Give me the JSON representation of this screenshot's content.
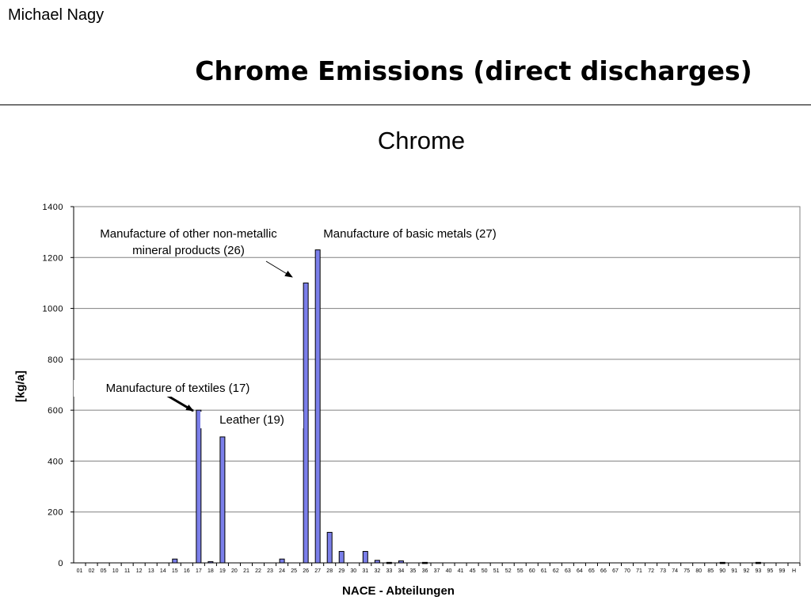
{
  "header": {
    "author": "Michael Nagy",
    "title": "Chrome Emissions (direct discharges)"
  },
  "chart_data": {
    "type": "bar",
    "title": "Chrome",
    "xlabel": "NACE - Abteilungen",
    "ylabel": "[kg/a]",
    "ylim": [
      0,
      1400
    ],
    "yticks": [
      0,
      200,
      400,
      600,
      800,
      1000,
      1200,
      1400
    ],
    "grid": true,
    "categories": [
      "01",
      "02",
      "05",
      "10",
      "11",
      "12",
      "13",
      "14",
      "15",
      "16",
      "17",
      "18",
      "19",
      "20",
      "21",
      "22",
      "23",
      "24",
      "25",
      "26",
      "27",
      "28",
      "29",
      "30",
      "31",
      "32",
      "33",
      "34",
      "35",
      "36",
      "37",
      "40",
      "41",
      "45",
      "50",
      "51",
      "52",
      "55",
      "60",
      "61",
      "62",
      "63",
      "64",
      "65",
      "66",
      "67",
      "70",
      "71",
      "72",
      "73",
      "74",
      "75",
      "80",
      "85",
      "90",
      "91",
      "92",
      "93",
      "95",
      "99",
      "H"
    ],
    "values": [
      0,
      0,
      0,
      0,
      0,
      0,
      0,
      0,
      15,
      0,
      600,
      5,
      495,
      0,
      0,
      0,
      0,
      15,
      0,
      1100,
      1230,
      120,
      45,
      0,
      45,
      10,
      2,
      8,
      0,
      2,
      0,
      0,
      0,
      0,
      0,
      0,
      0,
      0,
      0,
      0,
      0,
      0,
      0,
      0,
      0,
      0,
      0,
      0,
      0,
      0,
      0,
      0,
      0,
      0,
      2,
      0,
      0,
      2,
      0,
      0,
      0
    ],
    "annotations": [
      {
        "text": "Manufacture of other non-metallic mineral products (26)"
      },
      {
        "text": "Manufacture of basic metals (27)"
      },
      {
        "text": "Manufacture of textiles (17)"
      },
      {
        "text": "Leather (19)"
      }
    ],
    "colors": {
      "bar_fill": "#7b7fea",
      "bar_stroke": "#000000",
      "grid": "#808080"
    }
  }
}
